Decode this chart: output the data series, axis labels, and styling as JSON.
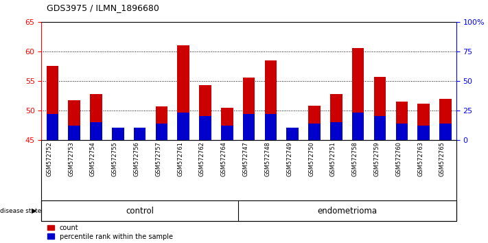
{
  "title": "GDS3975 / ILMN_1896680",
  "samples": [
    "GSM572752",
    "GSM572753",
    "GSM572754",
    "GSM572755",
    "GSM572756",
    "GSM572757",
    "GSM572761",
    "GSM572762",
    "GSM572764",
    "GSM572747",
    "GSM572748",
    "GSM572749",
    "GSM572750",
    "GSM572751",
    "GSM572758",
    "GSM572759",
    "GSM572760",
    "GSM572763",
    "GSM572765"
  ],
  "count_values": [
    57.5,
    51.7,
    52.8,
    45.9,
    46.2,
    50.6,
    61.0,
    54.3,
    50.4,
    55.6,
    58.5,
    46.5,
    50.8,
    52.8,
    60.5,
    55.7,
    51.5,
    51.1,
    51.9
  ],
  "percentile_values": [
    4.4,
    2.4,
    3.0,
    2.0,
    2.0,
    2.8,
    4.6,
    4.0,
    2.4,
    4.4,
    4.4,
    2.0,
    2.8,
    3.0,
    4.6,
    4.0,
    2.8,
    2.4,
    2.8
  ],
  "baseline": 45,
  "ylim_left": [
    45,
    65
  ],
  "ylim_right": [
    0,
    100
  ],
  "yticks_left": [
    45,
    50,
    55,
    60,
    65
  ],
  "yticks_right": [
    0,
    25,
    50,
    75,
    100
  ],
  "ytick_labels_right": [
    "0",
    "25",
    "50",
    "75",
    "100%"
  ],
  "control_count": 9,
  "endometrioma_count": 10,
  "bar_color_red": "#cc0000",
  "bar_color_blue": "#0000cc",
  "control_color": "#ccffcc",
  "endometrioma_color": "#33cc33",
  "bg_color": "#c8c8c8",
  "plot_bg": "#ffffff",
  "bar_width": 0.55,
  "grid_color": "black"
}
